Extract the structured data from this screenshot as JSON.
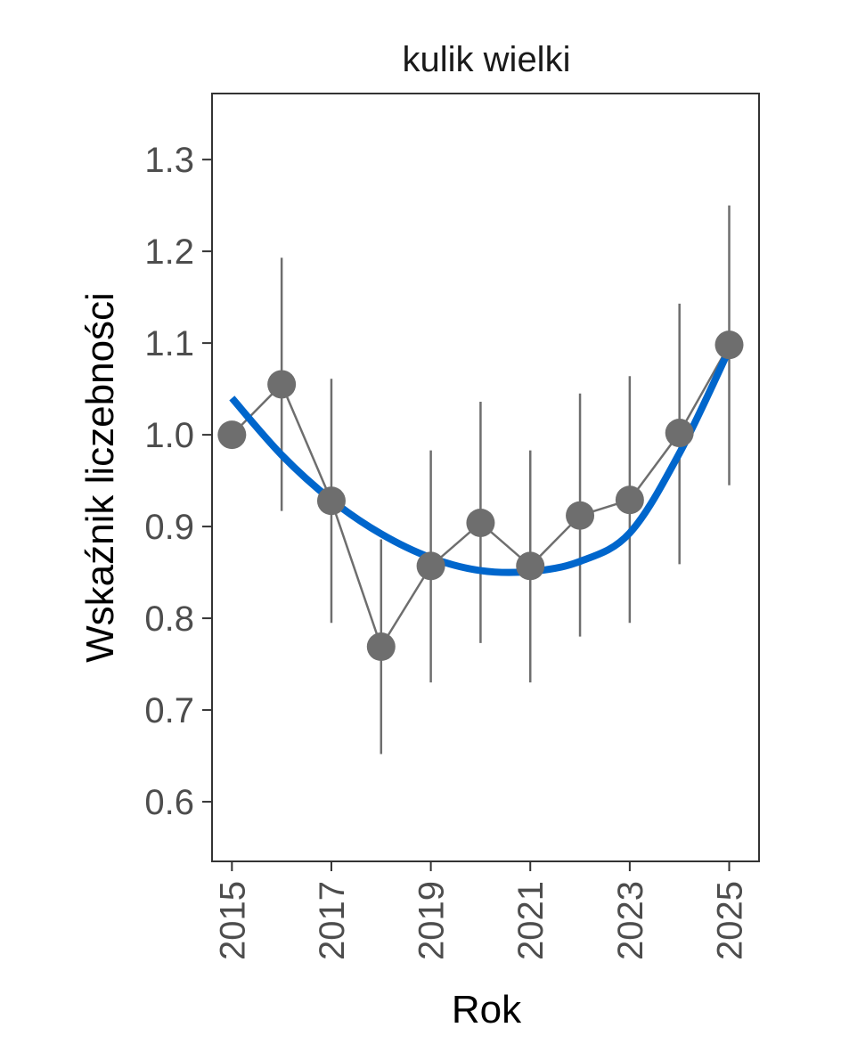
{
  "chart_data": {
    "type": "line",
    "title": "kulik wielki",
    "xlabel": "Rok",
    "ylabel": "Wskaźnik liczebności",
    "xlim": [
      2014.6,
      2025.6
    ],
    "ylim": [
      0.535,
      1.372
    ],
    "xticks": [
      2015,
      2017,
      2019,
      2021,
      2023,
      2025
    ],
    "xtick_labels": [
      "2015",
      "2017",
      "2019",
      "2021",
      "2023",
      "2025"
    ],
    "yticks": [
      0.6,
      0.7,
      0.8,
      0.9,
      1.0,
      1.1,
      1.2,
      1.3
    ],
    "ytick_labels": [
      "0.6",
      "0.7",
      "0.8",
      "0.9",
      "1.0",
      "1.1",
      "1.2",
      "1.3"
    ],
    "grid": false,
    "series": [
      {
        "kind": "points_with_error_bars",
        "color": "#6e6e6e",
        "x": [
          2015,
          2016,
          2017,
          2018,
          2019,
          2020,
          2021,
          2022,
          2023,
          2024,
          2025
        ],
        "y": [
          1.0,
          1.055,
          0.928,
          0.769,
          0.857,
          0.904,
          0.857,
          0.912,
          0.929,
          1.002,
          1.098
        ],
        "lower": [
          1.0,
          0.917,
          0.795,
          0.652,
          0.73,
          0.773,
          0.73,
          0.78,
          0.795,
          0.859,
          0.945
        ],
        "upper": [
          1.0,
          1.193,
          1.061,
          0.886,
          0.983,
          1.036,
          0.983,
          1.045,
          1.064,
          1.143,
          1.25
        ]
      },
      {
        "kind": "trend",
        "color": "#0066cc",
        "x": [
          2015,
          2016,
          2017,
          2018,
          2019,
          2020,
          2021,
          2022,
          2023,
          2024,
          2025
        ],
        "y": [
          1.04,
          0.978,
          0.929,
          0.892,
          0.866,
          0.852,
          0.851,
          0.862,
          0.893,
          0.98,
          1.093
        ]
      }
    ]
  }
}
